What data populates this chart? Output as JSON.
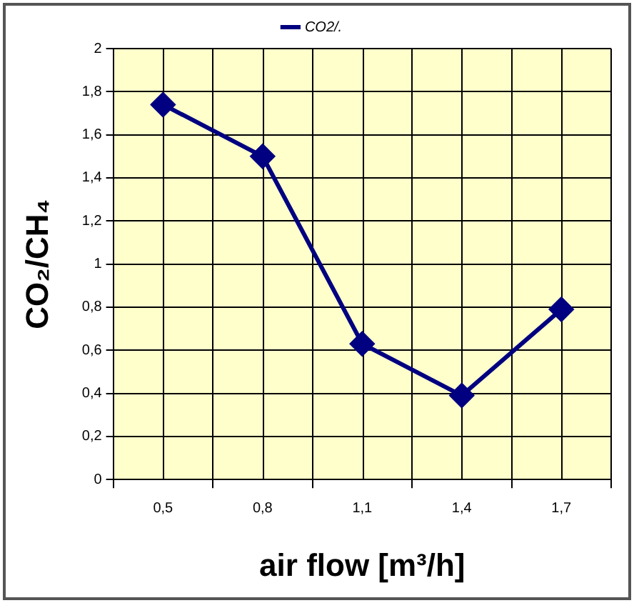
{
  "chart_data": {
    "type": "line",
    "xlabel": "air flow [m³/h]",
    "ylabel": "CO₂/CH₄",
    "categories": [
      "0,5",
      "0,8",
      "1,1",
      "1,4",
      "1,7"
    ],
    "series": [
      {
        "name": "CO2/.",
        "color": "#000080",
        "values": [
          1.74,
          1.5,
          0.63,
          0.39,
          0.79
        ]
      }
    ],
    "ylim": [
      0,
      2
    ],
    "yticks": [
      {
        "value": 0,
        "label": "0"
      },
      {
        "value": 0.2,
        "label": "0,2"
      },
      {
        "value": 0.4,
        "label": "0,4"
      },
      {
        "value": 0.6,
        "label": "0,6"
      },
      {
        "value": 0.8,
        "label": "0,8"
      },
      {
        "value": 1,
        "label": "1"
      },
      {
        "value": 1.2,
        "label": "1,2"
      },
      {
        "value": 1.4,
        "label": "1,4"
      },
      {
        "value": 1.6,
        "label": "1,6"
      },
      {
        "value": 1.8,
        "label": "1,8"
      },
      {
        "value": 2,
        "label": "2"
      }
    ],
    "grid": true,
    "legend": "top",
    "marker": "diamond",
    "line_style": "solid"
  }
}
